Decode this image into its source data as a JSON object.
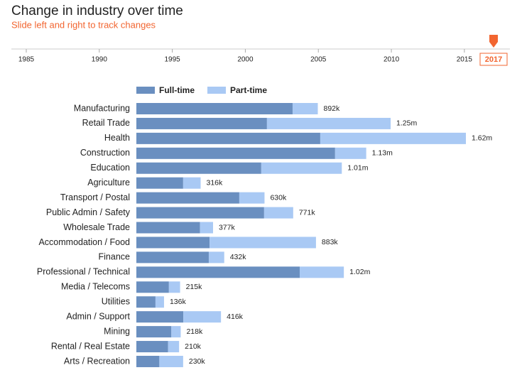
{
  "chart_data": {
    "type": "stacked-hbar",
    "title": "Change in industry over time",
    "subtitle": "Slide left and right to track changes",
    "timeline": {
      "xlim": [
        1985,
        2017
      ],
      "xticks": [
        1985,
        1990,
        1995,
        2000,
        2005,
        2010,
        2015
      ],
      "value": 2017,
      "color": "#f26530"
    },
    "categories": [
      "Manufacturing",
      "Retail Trade",
      "Health",
      "Construction",
      "Education",
      "Agriculture",
      "Transport / Postal",
      "Public Admin / Safety",
      "Wholesale Trade",
      "Accommodation / Food",
      "Finance",
      "Professional / Technical",
      "Media / Telecoms",
      "Utilities",
      "Admin / Support",
      "Mining",
      "Rental / Real Estate",
      "Arts / Recreation"
    ],
    "series": [
      {
        "name": "Full-time",
        "color": "#6a8fc0",
        "values": [
          768000,
          642000,
          904000,
          977000,
          614000,
          230000,
          506000,
          628000,
          313000,
          360000,
          356000,
          803000,
          160000,
          94000,
          231000,
          172000,
          156000,
          113000
        ]
      },
      {
        "name": "Part-time",
        "color": "#a9c9f4",
        "values": [
          124000,
          608000,
          716000,
          153000,
          396000,
          86000,
          124000,
          143000,
          64000,
          523000,
          76000,
          217000,
          55000,
          42000,
          185000,
          46000,
          54000,
          117000
        ]
      }
    ],
    "totals": [
      892000,
      1250000,
      1620000,
      1130000,
      1010000,
      316000,
      630000,
      771000,
      377000,
      883000,
      432000,
      1020000,
      215000,
      136000,
      416000,
      218000,
      210000,
      230000
    ],
    "total_labels": [
      "892k",
      "1.25m",
      "1.62m",
      "1.13m",
      "1.01m",
      "316k",
      "630k",
      "771k",
      "377k",
      "883k",
      "432k",
      "1.02m",
      "215k",
      "136k",
      "416k",
      "218k",
      "210k",
      "230k"
    ]
  }
}
